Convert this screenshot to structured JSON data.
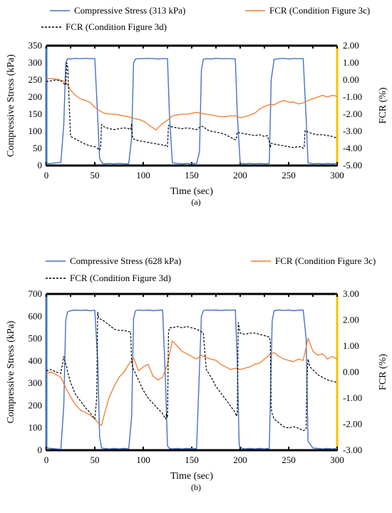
{
  "colors": {
    "stress": "#4472C4",
    "fcr3c": "#ED7D31",
    "fcr3d": "#000000",
    "right_axis": "#FFC000"
  },
  "chart_data": [
    {
      "type": "line",
      "caption": "(a)",
      "xlabel": "Time (sec)",
      "ylabel": "Compressive Stress (kPa)",
      "y2label": "FCR (%)",
      "xlim": [
        0,
        300
      ],
      "ylim": [
        0,
        350
      ],
      "y2lim": [
        -5,
        2
      ],
      "x_ticks": [
        "0",
        "50",
        "100",
        "150",
        "200",
        "250",
        "300"
      ],
      "y_ticks": [
        "0",
        "50",
        "100",
        "150",
        "200",
        "250",
        "300",
        "350"
      ],
      "y2_ticks": [
        "-5.00",
        "-4.00",
        "-3.00",
        "-2.00",
        "-1.00",
        "0.00",
        "1.00",
        "2.00"
      ],
      "legend": [
        "Compressive Stress (313 kPa)",
        "FCR (Condition Figure 3c)",
        "FCR (Condition Figure 3d)"
      ],
      "series": [
        {
          "name": "Compressive Stress (313 kPa)",
          "axis": "left",
          "x": [
            0,
            5,
            10,
            15,
            18,
            20,
            22,
            25,
            30,
            35,
            40,
            45,
            50,
            52,
            55,
            58,
            60,
            65,
            70,
            75,
            80,
            85,
            88,
            90,
            92,
            95,
            100,
            105,
            110,
            115,
            120,
            125,
            127,
            130,
            135,
            140,
            145,
            150,
            155,
            158,
            160,
            162,
            165,
            170,
            175,
            180,
            185,
            190,
            195,
            197,
            200,
            205,
            210,
            215,
            220,
            225,
            230,
            232,
            235,
            240,
            245,
            250,
            255,
            260,
            265,
            268,
            270,
            275,
            280,
            285,
            290,
            295,
            300
          ],
          "y": [
            5,
            6,
            8,
            9,
            120,
            300,
            312,
            311,
            313,
            312,
            313,
            312,
            312,
            200,
            20,
            6,
            5,
            6,
            5,
            6,
            5,
            5,
            80,
            300,
            311,
            312,
            312,
            313,
            312,
            311,
            312,
            312,
            150,
            8,
            6,
            5,
            6,
            5,
            6,
            40,
            280,
            310,
            312,
            311,
            313,
            312,
            312,
            312,
            311,
            150,
            6,
            5,
            6,
            5,
            6,
            5,
            6,
            250,
            310,
            312,
            313,
            311,
            312,
            312,
            312,
            140,
            8,
            5,
            6,
            5,
            6,
            5,
            6
          ]
        },
        {
          "name": "FCR (Condition Figure 3c)",
          "axis": "right",
          "x": [
            0,
            10,
            20,
            25,
            30,
            35,
            40,
            45,
            50,
            55,
            60,
            65,
            70,
            75,
            80,
            85,
            90,
            95,
            100,
            105,
            110,
            113,
            115,
            120,
            125,
            130,
            135,
            140,
            145,
            150,
            155,
            160,
            165,
            170,
            175,
            180,
            185,
            190,
            195,
            200,
            205,
            210,
            215,
            220,
            225,
            230,
            235,
            240,
            245,
            250,
            255,
            260,
            265,
            270,
            275,
            280,
            285,
            290,
            295,
            300
          ],
          "y": [
            0.1,
            0.05,
            -0.1,
            -0.6,
            -0.9,
            -1.1,
            -1.2,
            -1.3,
            -1.6,
            -1.8,
            -1.95,
            -2.0,
            -2.0,
            -2.05,
            -2.1,
            -2.15,
            -2.25,
            -2.3,
            -2.4,
            -2.6,
            -2.8,
            -2.92,
            -2.8,
            -2.55,
            -2.35,
            -2.1,
            -2.05,
            -2.0,
            -2.0,
            -1.95,
            -1.9,
            -1.95,
            -2.0,
            -2.05,
            -2.1,
            -2.15,
            -2.15,
            -2.1,
            -2.1,
            -2.2,
            -2.15,
            -2.05,
            -1.95,
            -1.7,
            -1.55,
            -1.45,
            -1.45,
            -1.3,
            -1.2,
            -1.3,
            -1.3,
            -1.4,
            -1.35,
            -1.2,
            -1.1,
            -1.0,
            -0.9,
            -1.0,
            -0.9,
            -0.95
          ]
        },
        {
          "name": "FCR (Condition Figure 3d)",
          "axis": "right",
          "x": [
            0,
            5,
            10,
            15,
            20,
            21,
            22,
            25,
            30,
            35,
            40,
            45,
            50,
            53,
            55,
            56,
            57,
            58,
            60,
            65,
            70,
            75,
            80,
            85,
            87,
            88,
            89,
            90,
            95,
            100,
            105,
            110,
            115,
            120,
            122,
            124,
            125,
            126,
            127,
            130,
            135,
            140,
            145,
            150,
            155,
            160,
            163,
            165,
            170,
            175,
            180,
            185,
            190,
            195,
            196,
            197,
            200,
            205,
            210,
            215,
            220,
            225,
            228,
            230,
            231,
            232,
            235,
            240,
            245,
            250,
            255,
            260,
            263,
            265,
            266,
            267,
            270,
            275,
            280,
            285,
            290,
            295,
            300
          ],
          "y": [
            -0.1,
            -0.05,
            0.0,
            -0.05,
            -0.3,
            1.0,
            0.8,
            -3.3,
            -3.45,
            -3.6,
            -3.75,
            -3.85,
            -3.9,
            -4.0,
            -4.1,
            -3.95,
            -2.6,
            -2.7,
            -2.75,
            -2.85,
            -2.9,
            -2.85,
            -2.8,
            -2.85,
            -2.9,
            -2.55,
            -3.4,
            -3.45,
            -3.55,
            -3.6,
            -3.65,
            -3.7,
            -3.75,
            -3.8,
            -3.85,
            -3.8,
            -3.9,
            -2.65,
            -2.7,
            -2.75,
            -2.8,
            -2.85,
            -2.8,
            -2.85,
            -2.9,
            -2.7,
            -2.75,
            -2.9,
            -3.0,
            -3.05,
            -3.1,
            -3.2,
            -3.35,
            -3.5,
            -3.45,
            -3.05,
            -3.1,
            -3.15,
            -3.2,
            -3.25,
            -3.2,
            -3.3,
            -3.25,
            -3.6,
            -3.95,
            -3.7,
            -3.75,
            -3.8,
            -3.85,
            -3.9,
            -3.95,
            -3.9,
            -3.9,
            -4.0,
            -3.9,
            -2.95,
            -3.05,
            -3.15,
            -3.2,
            -3.2,
            -3.25,
            -3.3,
            -3.4
          ]
        }
      ]
    },
    {
      "type": "line",
      "caption": "(b)",
      "xlabel": "Time (sec)",
      "ylabel": "Compressive Stress (kPa)",
      "y2label": "FCR (%)",
      "xlim": [
        0,
        300
      ],
      "ylim": [
        0,
        700
      ],
      "y2lim": [
        -3,
        3
      ],
      "x_ticks": [
        "0",
        "50",
        "100",
        "150",
        "200",
        "250",
        "300"
      ],
      "y_ticks": [
        "0",
        "100",
        "200",
        "300",
        "400",
        "500",
        "600",
        "700"
      ],
      "y2_ticks": [
        "-3.00",
        "-2.00",
        "-1.00",
        "0.00",
        "1.00",
        "2.00",
        "3.00"
      ],
      "legend": [
        "Compressive Stress (628 kPa)",
        "FCR (Condition Figure 3c)",
        "FCR (Condition Figure 3d)"
      ],
      "series": [
        {
          "name": "Compressive Stress (628 kPa)",
          "axis": "left",
          "x": [
            0,
            5,
            10,
            15,
            18,
            20,
            22,
            25,
            30,
            35,
            40,
            45,
            50,
            53,
            55,
            57,
            60,
            65,
            70,
            75,
            80,
            85,
            88,
            90,
            92,
            95,
            100,
            105,
            110,
            115,
            120,
            123,
            125,
            127,
            130,
            135,
            140,
            145,
            150,
            155,
            160,
            162,
            165,
            170,
            175,
            180,
            185,
            190,
            195,
            197,
            199,
            202,
            205,
            210,
            215,
            220,
            225,
            230,
            233,
            235,
            240,
            245,
            250,
            255,
            260,
            265,
            268,
            270,
            275,
            280,
            285,
            290,
            295,
            300
          ],
          "y": [
            10,
            8,
            6,
            5,
            200,
            580,
            620,
            625,
            628,
            626,
            628,
            625,
            627,
            400,
            60,
            10,
            8,
            6,
            8,
            6,
            8,
            6,
            150,
            590,
            625,
            628,
            626,
            628,
            625,
            627,
            628,
            300,
            20,
            8,
            6,
            8,
            6,
            8,
            6,
            8,
            600,
            625,
            628,
            627,
            628,
            626,
            628,
            627,
            628,
            400,
            20,
            8,
            6,
            8,
            6,
            8,
            6,
            8,
            580,
            625,
            628,
            626,
            628,
            625,
            627,
            628,
            500,
            40,
            10,
            8,
            6,
            8,
            6,
            8
          ]
        },
        {
          "name": "FCR (Condition Figure 3c)",
          "axis": "right",
          "x": [
            0,
            5,
            10,
            15,
            20,
            25,
            30,
            35,
            40,
            45,
            50,
            55,
            57,
            60,
            65,
            70,
            75,
            80,
            85,
            90,
            95,
            100,
            105,
            110,
            115,
            120,
            125,
            130,
            135,
            140,
            145,
            150,
            155,
            160,
            165,
            170,
            175,
            180,
            185,
            190,
            195,
            200,
            205,
            210,
            215,
            220,
            225,
            230,
            235,
            240,
            245,
            250,
            255,
            260,
            265,
            270,
            275,
            280,
            285,
            290,
            295,
            300
          ],
          "y": [
            -0.05,
            0.0,
            -0.1,
            -0.2,
            -0.6,
            -0.95,
            -1.25,
            -1.45,
            -1.55,
            -1.65,
            -1.8,
            -2.0,
            -2.05,
            -1.6,
            -0.95,
            -0.55,
            -0.2,
            0.0,
            0.3,
            0.55,
            0.05,
            0.2,
            0.3,
            -0.15,
            -0.3,
            -0.2,
            0.3,
            1.2,
            1.0,
            0.8,
            0.7,
            0.6,
            0.5,
            0.65,
            0.55,
            0.5,
            0.45,
            0.3,
            0.2,
            0.1,
            0.15,
            0.1,
            0.15,
            0.2,
            0.3,
            0.35,
            0.5,
            0.65,
            0.75,
            0.6,
            0.5,
            0.45,
            0.4,
            0.5,
            0.45,
            1.3,
            0.8,
            0.65,
            0.7,
            0.5,
            0.6,
            0.5
          ]
        },
        {
          "name": "FCR (Condition Figure 3d)",
          "axis": "right",
          "x": [
            0,
            5,
            10,
            15,
            18,
            20,
            21,
            22,
            25,
            30,
            35,
            40,
            45,
            50,
            52,
            53,
            54,
            55,
            60,
            65,
            70,
            75,
            80,
            85,
            87,
            88,
            89,
            90,
            95,
            100,
            105,
            110,
            115,
            120,
            123,
            124,
            125,
            126,
            127,
            130,
            135,
            140,
            145,
            150,
            155,
            160,
            162,
            165,
            170,
            175,
            180,
            185,
            190,
            195,
            196,
            197,
            198,
            200,
            205,
            210,
            215,
            220,
            225,
            230,
            231,
            232,
            233,
            235,
            240,
            245,
            250,
            255,
            260,
            265,
            268,
            269,
            270,
            272,
            275,
            280,
            285,
            290,
            295,
            300
          ],
          "y": [
            0.05,
            0.1,
            0.0,
            -0.05,
            0.6,
            0.3,
            0.2,
            0.0,
            -0.4,
            -0.85,
            -1.1,
            -1.35,
            -1.55,
            -1.8,
            -1.0,
            2.3,
            2.1,
            2.05,
            1.95,
            1.8,
            1.65,
            1.6,
            1.6,
            1.55,
            1.55,
            0.4,
            0.2,
            0.1,
            -0.3,
            -0.7,
            -1.0,
            -1.2,
            -1.4,
            -1.6,
            -1.8,
            -1.6,
            -1.75,
            1.5,
            1.7,
            1.7,
            1.75,
            1.7,
            1.75,
            1.7,
            1.65,
            1.55,
            1.5,
            0.1,
            -0.2,
            -0.55,
            -0.8,
            -1.05,
            -1.3,
            -1.55,
            -1.7,
            -1.6,
            1.9,
            1.5,
            1.45,
            1.5,
            1.5,
            1.45,
            1.4,
            1.35,
            1.2,
            -1.4,
            -1.6,
            -1.8,
            -1.95,
            -2.1,
            -2.15,
            -2.1,
            -2.15,
            -2.25,
            -2.2,
            -0.2,
            0.5,
            0.2,
            0.1,
            -0.1,
            -0.2,
            -0.3,
            -0.35,
            -0.4
          ]
        }
      ]
    }
  ]
}
